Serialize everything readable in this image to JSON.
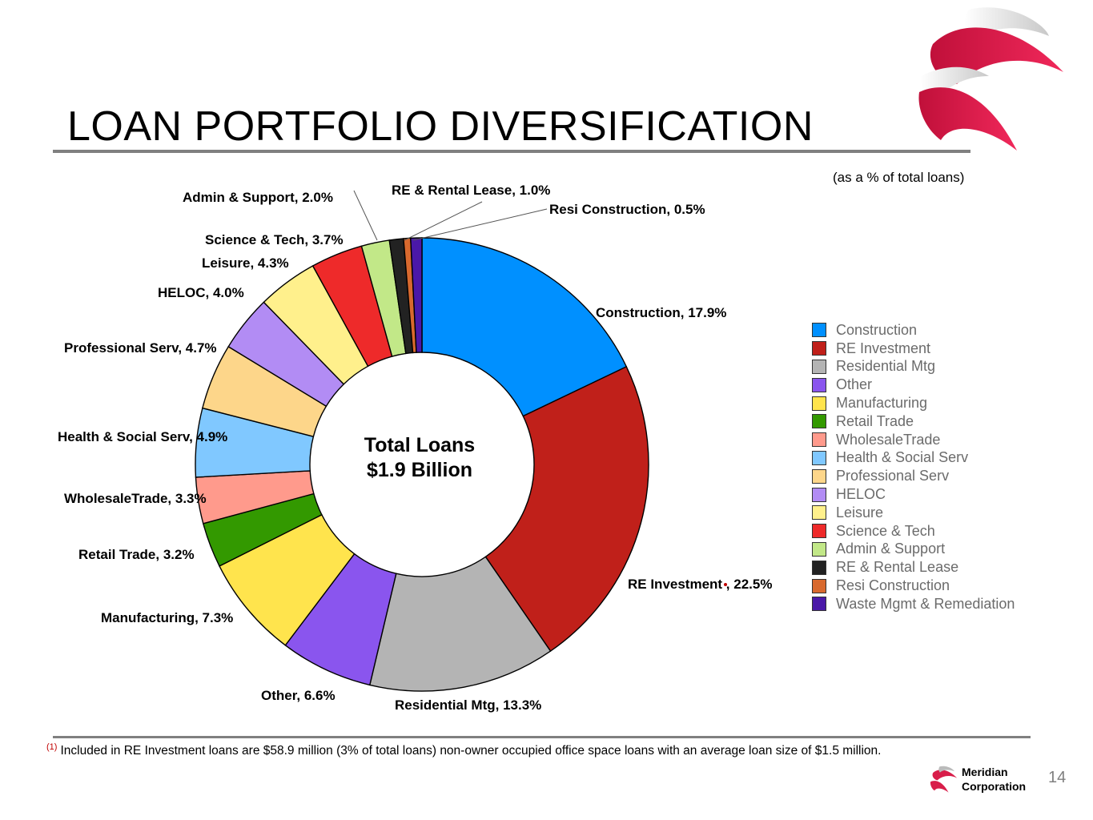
{
  "page": {
    "title": "LOAN PORTFOLIO DIVERSIFICATION",
    "subtitle": "(as a % of total loans)",
    "footnote_marker": "(1)",
    "footnote": "Included in RE Investment loans are $58.9 million (3% of total loans) non-owner occupied office space loans with an average loan size of $1.5 million.",
    "company_line1": "Meridian",
    "company_line2": "Corporation",
    "page_number": "14"
  },
  "chart_data": {
    "type": "pie",
    "donut": true,
    "title": "Total Loans",
    "center_line1": "Total Loans",
    "center_line2": "$1.9 Billion",
    "unit": "% of total loans",
    "legend_position": "right",
    "categories": [
      "Construction",
      "RE Investment",
      "Residential Mtg",
      "Other",
      "Manufacturing",
      "Retail Trade",
      "WholesaleTrade",
      "Health & Social Serv",
      "Professional Serv",
      "HELOC",
      "Leisure",
      "Science & Tech",
      "Admin & Support",
      "RE & Rental Lease",
      "Resi Construction",
      "Waste Mgmt & Remediation"
    ],
    "values": [
      17.9,
      22.5,
      13.3,
      6.6,
      7.3,
      3.2,
      3.3,
      4.9,
      4.7,
      4.0,
      4.3,
      3.7,
      2.0,
      1.0,
      0.5,
      0.8
    ],
    "colors": [
      "#0090ff",
      "#c0201a",
      "#b4b4b4",
      "#8a55ee",
      "#ffe44d",
      "#339900",
      "#ff9a8c",
      "#80c8ff",
      "#fdd68a",
      "#b28cf4",
      "#fff08c",
      "#ee2a2a",
      "#c2e888",
      "#222222",
      "#d8692e",
      "#4a18a8"
    ],
    "data_labels": [
      "Construction, 17.9%",
      "RE Investment , 22.5%",
      "Residential Mtg, 13.3%",
      "Other, 6.6%",
      "Manufacturing, 7.3%",
      "Retail Trade, 3.2%",
      "WholesaleTrade, 3.3%",
      "Health & Social Serv, 4.9%",
      "Professional Serv, 4.7%",
      "HELOC, 4.0%",
      "Leisure, 4.3%",
      "Science & Tech, 3.7%",
      "Admin & Support, 2.0%",
      "RE & Rental Lease, 1.0%",
      "Resi Construction, 0.5%",
      ""
    ],
    "footnote_marker_on": "RE Investment"
  }
}
